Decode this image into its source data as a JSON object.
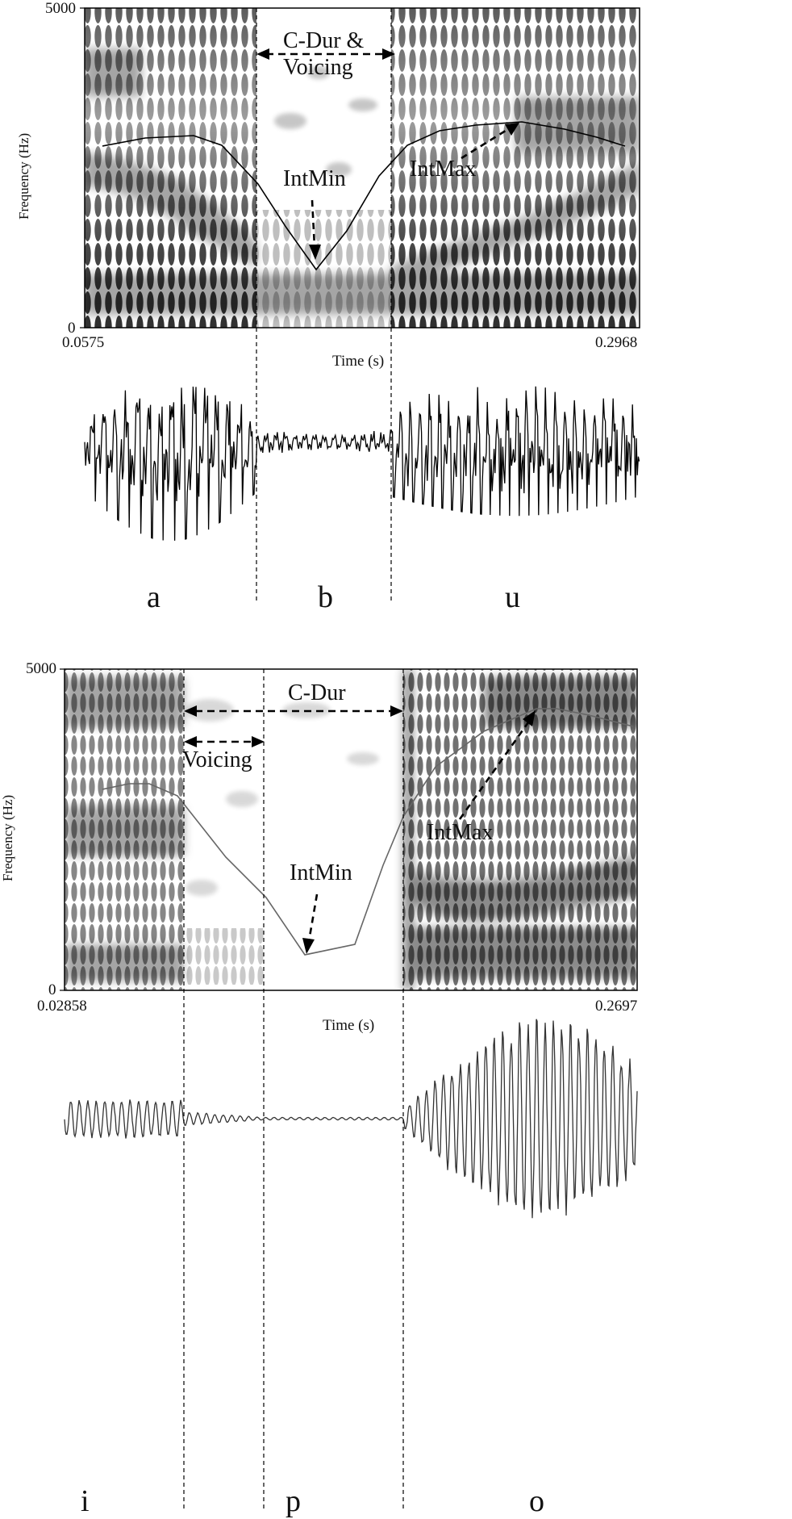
{
  "panel1": {
    "ylabel": "Frequency (Hz)",
    "y_max": "5000",
    "y_min": "0",
    "x_start": "0.0575",
    "x_end": "0.2968",
    "xlabel": "Time (s)",
    "cdur_label_line1": "C-Dur &",
    "cdur_label_line2": "Voicing",
    "intmin_label": "IntMin",
    "intmax_label": "IntMax",
    "segments": [
      "a",
      "b",
      "u"
    ]
  },
  "panel2": {
    "ylabel": "Frequency (Hz)",
    "y_max": "5000",
    "y_min": "0",
    "x_start": "0.02858",
    "x_end": "0.2697",
    "xlabel": "Time (s)",
    "cdur_label": "C-Dur",
    "voicing_label": "Voicing",
    "intmin_label": "IntMin",
    "intmax_label": "IntMax",
    "segments": [
      "i",
      "p",
      "o"
    ]
  }
}
